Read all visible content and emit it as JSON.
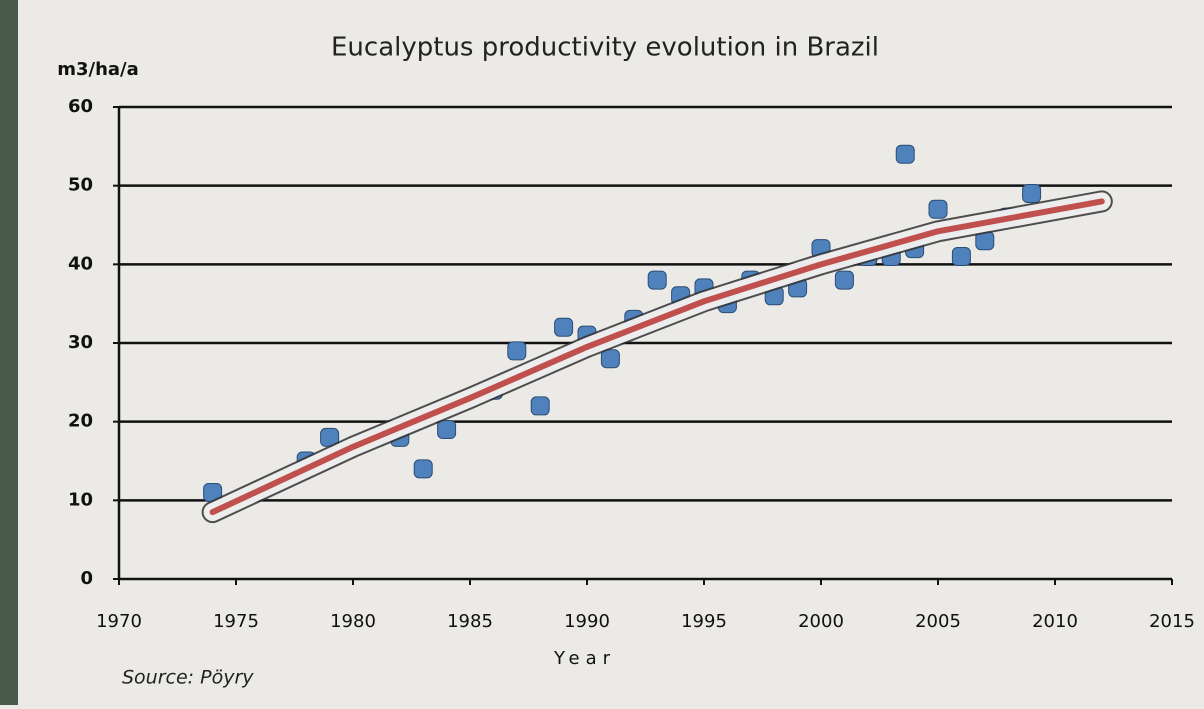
{
  "chart_data": {
    "type": "scatter",
    "title": "Eucalyptus productivity evolution in Brazil",
    "y_label": "m3/ha/a",
    "x_label": "Year",
    "source": "Source: Pöyry",
    "xlim": [
      1970,
      2015
    ],
    "xticks": [
      1970,
      1975,
      1980,
      1985,
      1990,
      1995,
      2000,
      2005,
      2010,
      2015
    ],
    "ylim": [
      0,
      60
    ],
    "yticks": [
      0,
      10,
      20,
      30,
      40,
      50,
      60
    ],
    "grid": true,
    "series": [
      {
        "kind": "scatter",
        "color": "#4f81bd",
        "x": [
          1974,
          1978,
          1979,
          1982,
          1983,
          1984,
          1986,
          1987,
          1988,
          1989,
          1990,
          1991,
          1992,
          1993,
          1994,
          1995,
          1996,
          1997,
          1998,
          1999,
          2000,
          2001,
          2002,
          2003,
          2003.6,
          2004,
          2005,
          2006,
          2007,
          2008,
          2009
        ],
        "values": [
          11,
          15,
          18,
          18,
          14,
          19,
          24,
          29,
          22,
          32,
          31,
          28,
          33,
          38,
          36,
          37,
          35,
          38,
          36,
          37,
          42,
          38,
          41,
          41,
          54,
          42,
          47,
          41,
          43,
          46,
          49
        ]
      },
      {
        "kind": "line",
        "color": "#c0504d",
        "x": [
          1974,
          1980,
          1985,
          1990,
          1995,
          2000,
          2005,
          2012
        ],
        "values": [
          8.5,
          16.8,
          23,
          29.5,
          35.3,
          40,
          44.2,
          48
        ]
      }
    ]
  }
}
